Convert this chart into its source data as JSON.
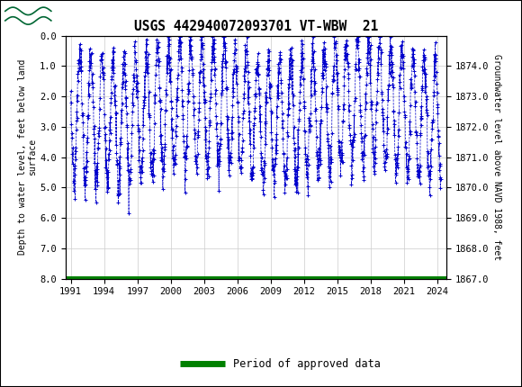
{
  "title": "USGS 442940072093701 VT-WBW  21",
  "header_color": "#006633",
  "left_ylabel": "Depth to water level, feet below land\nsurface",
  "right_ylabel": "Groundwater level above NAVD 1988, feet",
  "xlim": [
    1990.5,
    2024.8
  ],
  "ylim_left": [
    0.0,
    8.0
  ],
  "ylim_right": [
    1867.0,
    1875.0
  ],
  "xticks": [
    1991,
    1994,
    1997,
    2000,
    2003,
    2006,
    2009,
    2012,
    2015,
    2018,
    2021,
    2024
  ],
  "yticks_left": [
    0.0,
    1.0,
    2.0,
    3.0,
    4.0,
    5.0,
    6.0,
    7.0,
    8.0
  ],
  "yticks_right": [
    1867.0,
    1868.0,
    1869.0,
    1870.0,
    1871.0,
    1872.0,
    1873.0,
    1874.0
  ],
  "data_color": "#0000CC",
  "approved_color": "#008000",
  "legend_label": "Period of approved data",
  "background_color": "#ffffff",
  "grid_color": "#cccccc",
  "fig_width": 5.8,
  "fig_height": 4.3,
  "dpi": 100
}
